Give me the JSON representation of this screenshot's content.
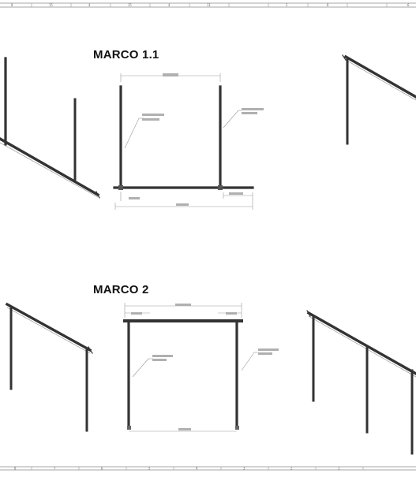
{
  "drawing": {
    "views": [
      {
        "id": "marco-1-1",
        "title": "MARCO 1.1"
      },
      {
        "id": "marco-2",
        "title": "MARCO 2"
      }
    ]
  },
  "border_zones": {
    "top": [
      "8",
      "15",
      "4",
      "15",
      "4",
      "11",
      "2",
      "8",
      "6"
    ],
    "bottom": [
      "8",
      "7",
      "6",
      "5",
      "4",
      "3",
      "2",
      "1"
    ]
  },
  "colors": {
    "beam": "#333333",
    "beam_light": "#888888",
    "dimension": "#9a9a9a",
    "border": "#888888",
    "title": "#111111"
  }
}
